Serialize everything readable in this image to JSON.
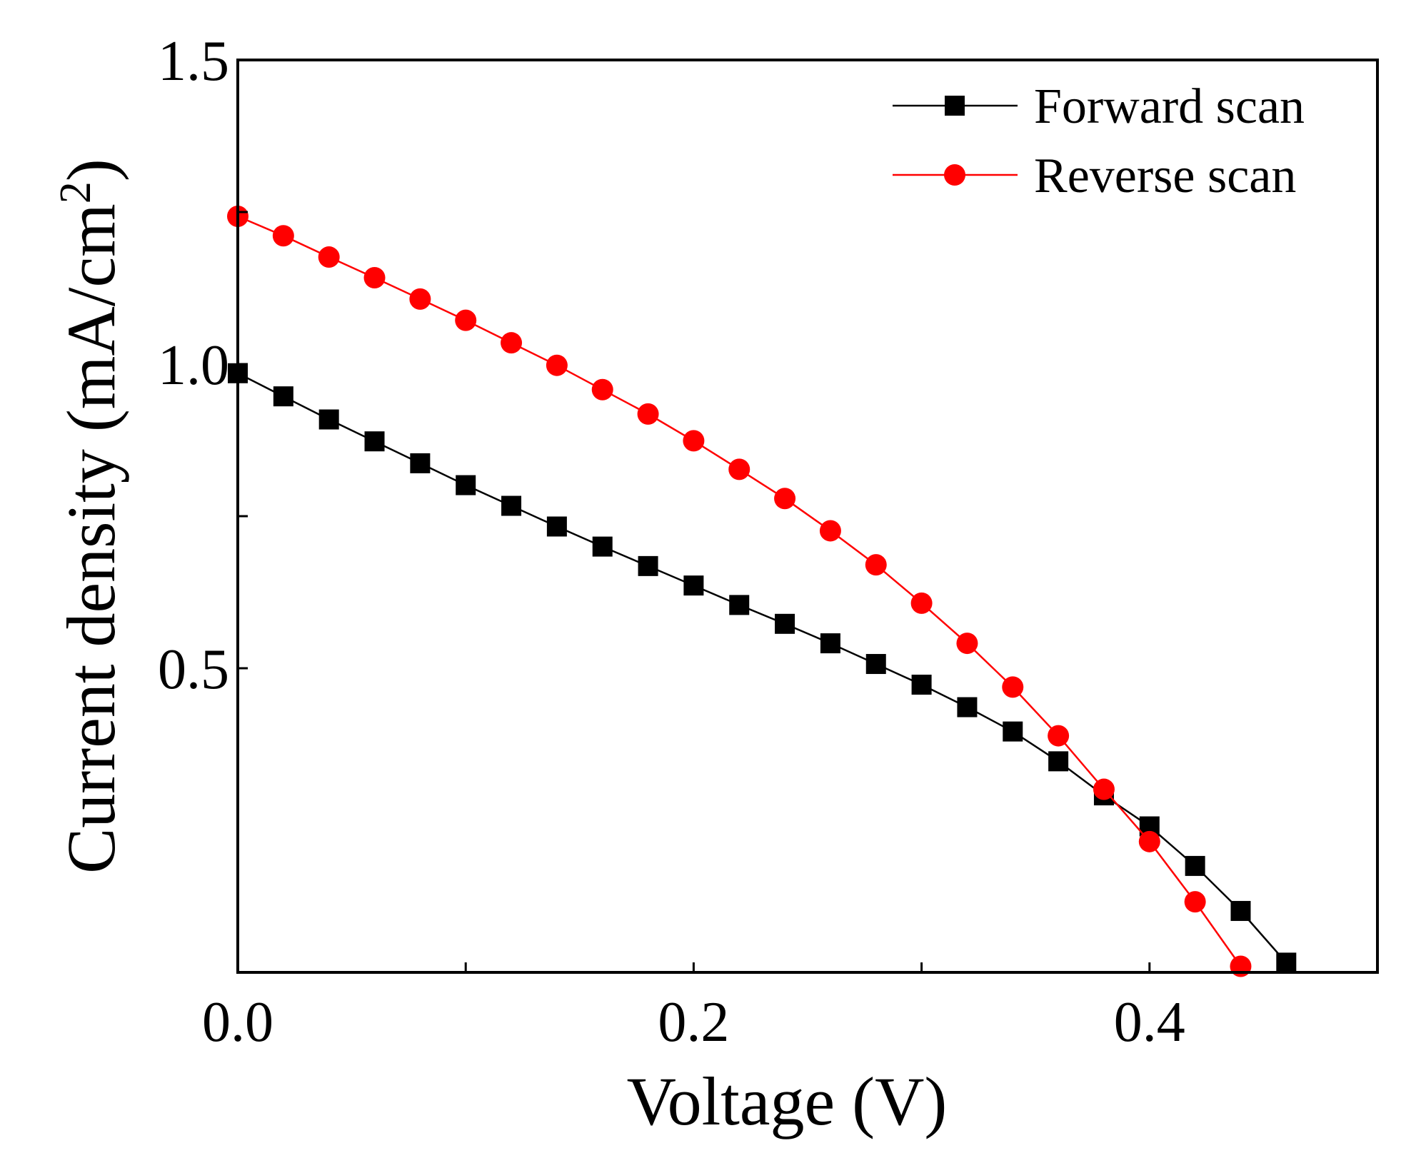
{
  "chart_data": {
    "type": "line",
    "title": "",
    "xlabel": "Voltage (V)",
    "ylabel_main": "Current density (mA/cm",
    "ylabel_sup": "2",
    "ylabel_close": ")",
    "xlim": [
      0.0,
      0.5
    ],
    "ylim": [
      0.0,
      1.5
    ],
    "x_ticks": [
      0.0,
      0.1,
      0.2,
      0.3,
      0.4,
      0.5
    ],
    "x_tick_labels": [
      "0.0",
      "",
      "0.2",
      "",
      "0.4",
      ""
    ],
    "y_ticks": [
      0.5,
      0.75,
      1.0,
      1.25,
      1.5
    ],
    "y_tick_labels": [
      "0.5",
      "",
      "1.0",
      "",
      "1.5"
    ],
    "grid": false,
    "legend_position": "top-right",
    "series": [
      {
        "name": "Forward scan",
        "color": "#000000",
        "marker": "square",
        "x": [
          0.0,
          0.02,
          0.04,
          0.06,
          0.08,
          0.1,
          0.12,
          0.14,
          0.16,
          0.18,
          0.2,
          0.22,
          0.24,
          0.26,
          0.28,
          0.3,
          0.32,
          0.34,
          0.36,
          0.38,
          0.4,
          0.42,
          0.44,
          0.46
        ],
        "y": [
          0.985,
          0.947,
          0.909,
          0.873,
          0.837,
          0.801,
          0.767,
          0.733,
          0.7,
          0.668,
          0.636,
          0.604,
          0.573,
          0.541,
          0.507,
          0.473,
          0.436,
          0.396,
          0.347,
          0.291,
          0.24,
          0.175,
          0.101,
          0.016
        ]
      },
      {
        "name": "Reverse scan",
        "color": "#ff0000",
        "marker": "circle",
        "x": [
          0.0,
          0.02,
          0.04,
          0.06,
          0.08,
          0.1,
          0.12,
          0.14,
          0.16,
          0.18,
          0.2,
          0.22,
          0.24,
          0.26,
          0.28,
          0.3,
          0.32,
          0.34,
          0.36,
          0.38,
          0.4,
          0.42,
          0.44
        ],
        "y": [
          1.243,
          1.211,
          1.176,
          1.142,
          1.107,
          1.072,
          1.035,
          0.998,
          0.958,
          0.918,
          0.874,
          0.827,
          0.779,
          0.726,
          0.67,
          0.607,
          0.541,
          0.469,
          0.389,
          0.301,
          0.215,
          0.116,
          0.01
        ]
      }
    ]
  }
}
